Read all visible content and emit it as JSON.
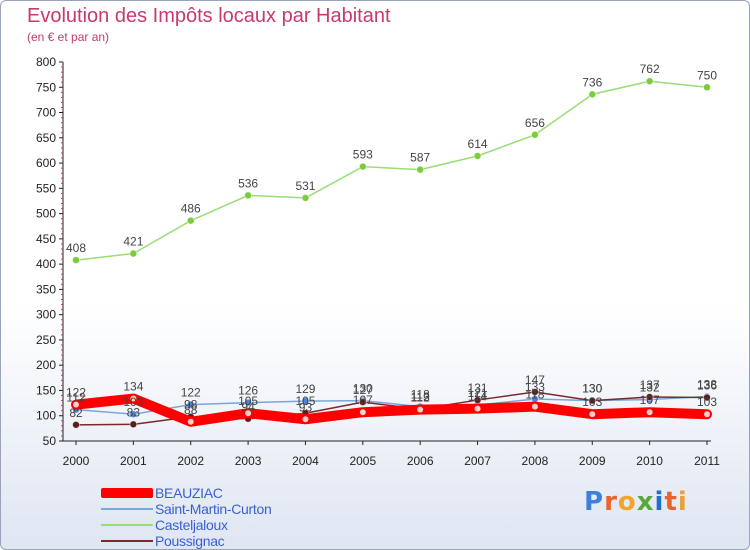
{
  "chart_data": {
    "type": "line",
    "title": "Evolution des Impôts locaux par Habitant",
    "subtitle": "(en € et par an)",
    "xlabel": "",
    "ylabel": "",
    "x": [
      "2000",
      "2001",
      "2002",
      "2003",
      "2004",
      "2005",
      "2006",
      "2007",
      "2008",
      "2009",
      "2010",
      "2011"
    ],
    "ylim": [
      50,
      800
    ],
    "yticks": [
      50,
      100,
      150,
      200,
      250,
      300,
      350,
      400,
      450,
      500,
      550,
      600,
      650,
      700,
      750,
      800
    ],
    "grid": false,
    "legend_position": "bottom-left",
    "series": [
      {
        "name": "BEAUZIAC",
        "color": "#ff0000",
        "values": [
          122,
          134,
          88,
          105,
          93,
          107,
          112,
          114,
          118,
          103,
          107,
          103
        ]
      },
      {
        "name": "Saint-Martin-Curton",
        "color": "#7aa6d8",
        "values": [
          112,
          103,
          122,
          126,
          129,
          130,
          118,
          121,
          133,
          130,
          132,
          138
        ]
      },
      {
        "name": "Casteljaloux",
        "color": "#99dd77",
        "values": [
          408,
          421,
          486,
          536,
          531,
          593,
          587,
          614,
          656,
          736,
          762,
          750
        ]
      },
      {
        "name": "Poussignac",
        "color": "#7a2a2a",
        "values": [
          82,
          83,
          98,
          94,
          105,
          127,
          113,
          131,
          147,
          130,
          137,
          136
        ]
      }
    ]
  },
  "logo": {
    "text": "Proxiti",
    "letter_colors": [
      "#3f7fd8",
      "#e8642a",
      "#f2a52b",
      "#5aa83c",
      "#1d6fd0",
      "#e8642a",
      "#e8a03a"
    ]
  }
}
